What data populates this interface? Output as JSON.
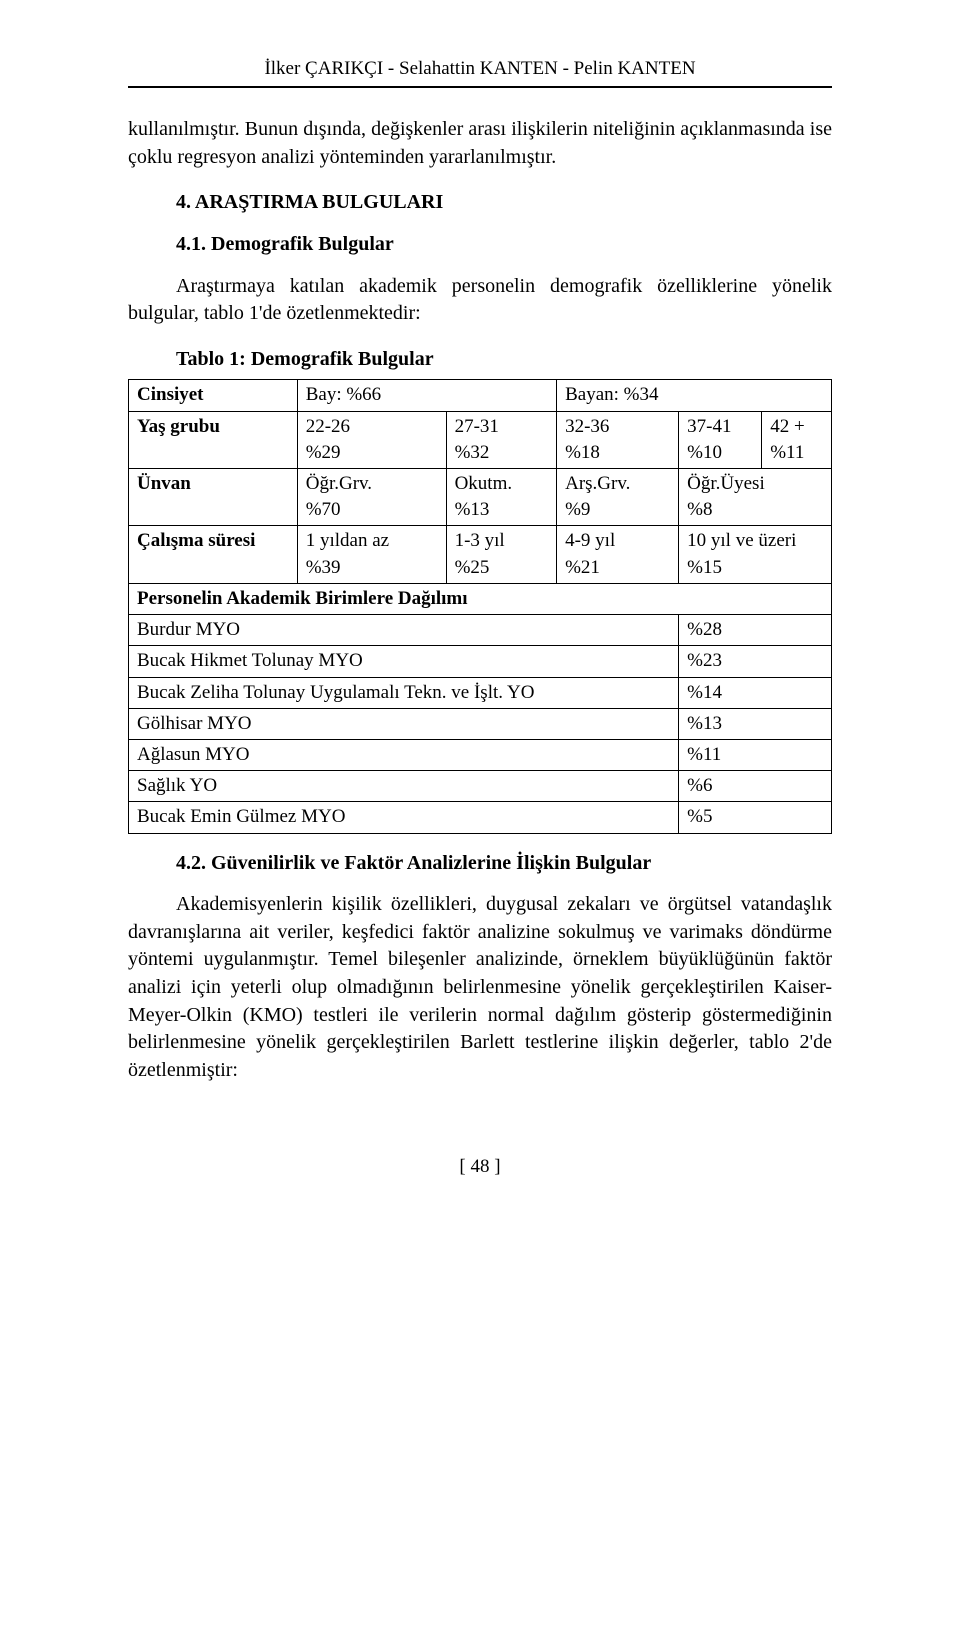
{
  "authors_line": "İlker ÇARIKÇI - Selahattin KANTEN - Pelin KANTEN",
  "para1": "kullanılmıştır. Bunun dışında, değişkenler arası ilişkilerin niteliğinin açıklanmasında ise çoklu regresyon analizi yönteminden yararlanılmıştır.",
  "heading_4": "4. ARAŞTIRMA BULGULARI",
  "heading_4_1": "4.1. Demografik Bulgular",
  "para2": "Araştırmaya katılan akademik personelin demografik özelliklerine yönelik bulgular, tablo 1'de özetlenmektedir:",
  "table1": {
    "title": "Tablo 1: Demografik Bulgular",
    "rows": {
      "cinsiyet": {
        "label": "Cinsiyet",
        "cells": [
          "Bay: %66",
          "Bayan: %34"
        ]
      },
      "yas": {
        "label": "Yaş grubu",
        "cells": [
          [
            "22-26",
            "%29"
          ],
          [
            "27-31",
            "%32"
          ],
          [
            "32-36",
            "%18"
          ],
          [
            "37-41",
            "%10"
          ],
          [
            "42 +",
            "%11"
          ]
        ]
      },
      "unvan": {
        "label": "Ünvan",
        "cells": [
          [
            "Öğr.Grv.",
            "%70"
          ],
          [
            "Okutm.",
            "%13"
          ],
          [
            "Arş.Grv.",
            "%9"
          ],
          [
            "Öğr.Üyesi",
            "%8"
          ]
        ]
      },
      "calisma": {
        "label": "Çalışma süresi",
        "cells": [
          [
            "1 yıldan az",
            "%39"
          ],
          [
            "1-3 yıl",
            "%25"
          ],
          [
            "4-9 yıl",
            "%21"
          ],
          [
            "10 yıl ve üzeri",
            "%15"
          ]
        ]
      },
      "dagilim_header": "Personelin Akademik Birimlere Dağılımı",
      "units": [
        {
          "name": "Burdur MYO",
          "pct": "%28"
        },
        {
          "name": "Bucak Hikmet Tolunay MYO",
          "pct": "%23"
        },
        {
          "name": "Bucak Zeliha Tolunay Uygulamalı Tekn. ve İşlt. YO",
          "pct": "%14"
        },
        {
          "name": "Gölhisar MYO",
          "pct": "%13"
        },
        {
          "name": "Ağlasun MYO",
          "pct": "%11"
        },
        {
          "name": "Sağlık YO",
          "pct": "%6"
        },
        {
          "name": "Bucak Emin Gülmez MYO",
          "pct": "%5"
        }
      ]
    }
  },
  "heading_4_2": "4.2. Güvenilirlik ve Faktör Analizlerine İlişkin Bulgular",
  "para3": "Akademisyenlerin kişilik özellikleri, duygusal zekaları ve örgütsel vatandaşlık davranışlarına ait veriler, keşfedici faktör analizine sokulmuş ve varimaks döndürme yöntemi uygulanmıştır. Temel bileşenler analizinde, örneklem büyüklüğünün faktör analizi için yeterli olup olmadığının belirlenmesine yönelik gerçekleştirilen Kaiser-Meyer-Olkin (KMO) testleri ile verilerin normal dağılım gösterip göstermediğinin belirlenmesine yönelik gerçekleştirilen Barlett testlerine ilişkin değerler, tablo 2'de özetlenmiştir:",
  "page_number": "[ 48 ]"
}
